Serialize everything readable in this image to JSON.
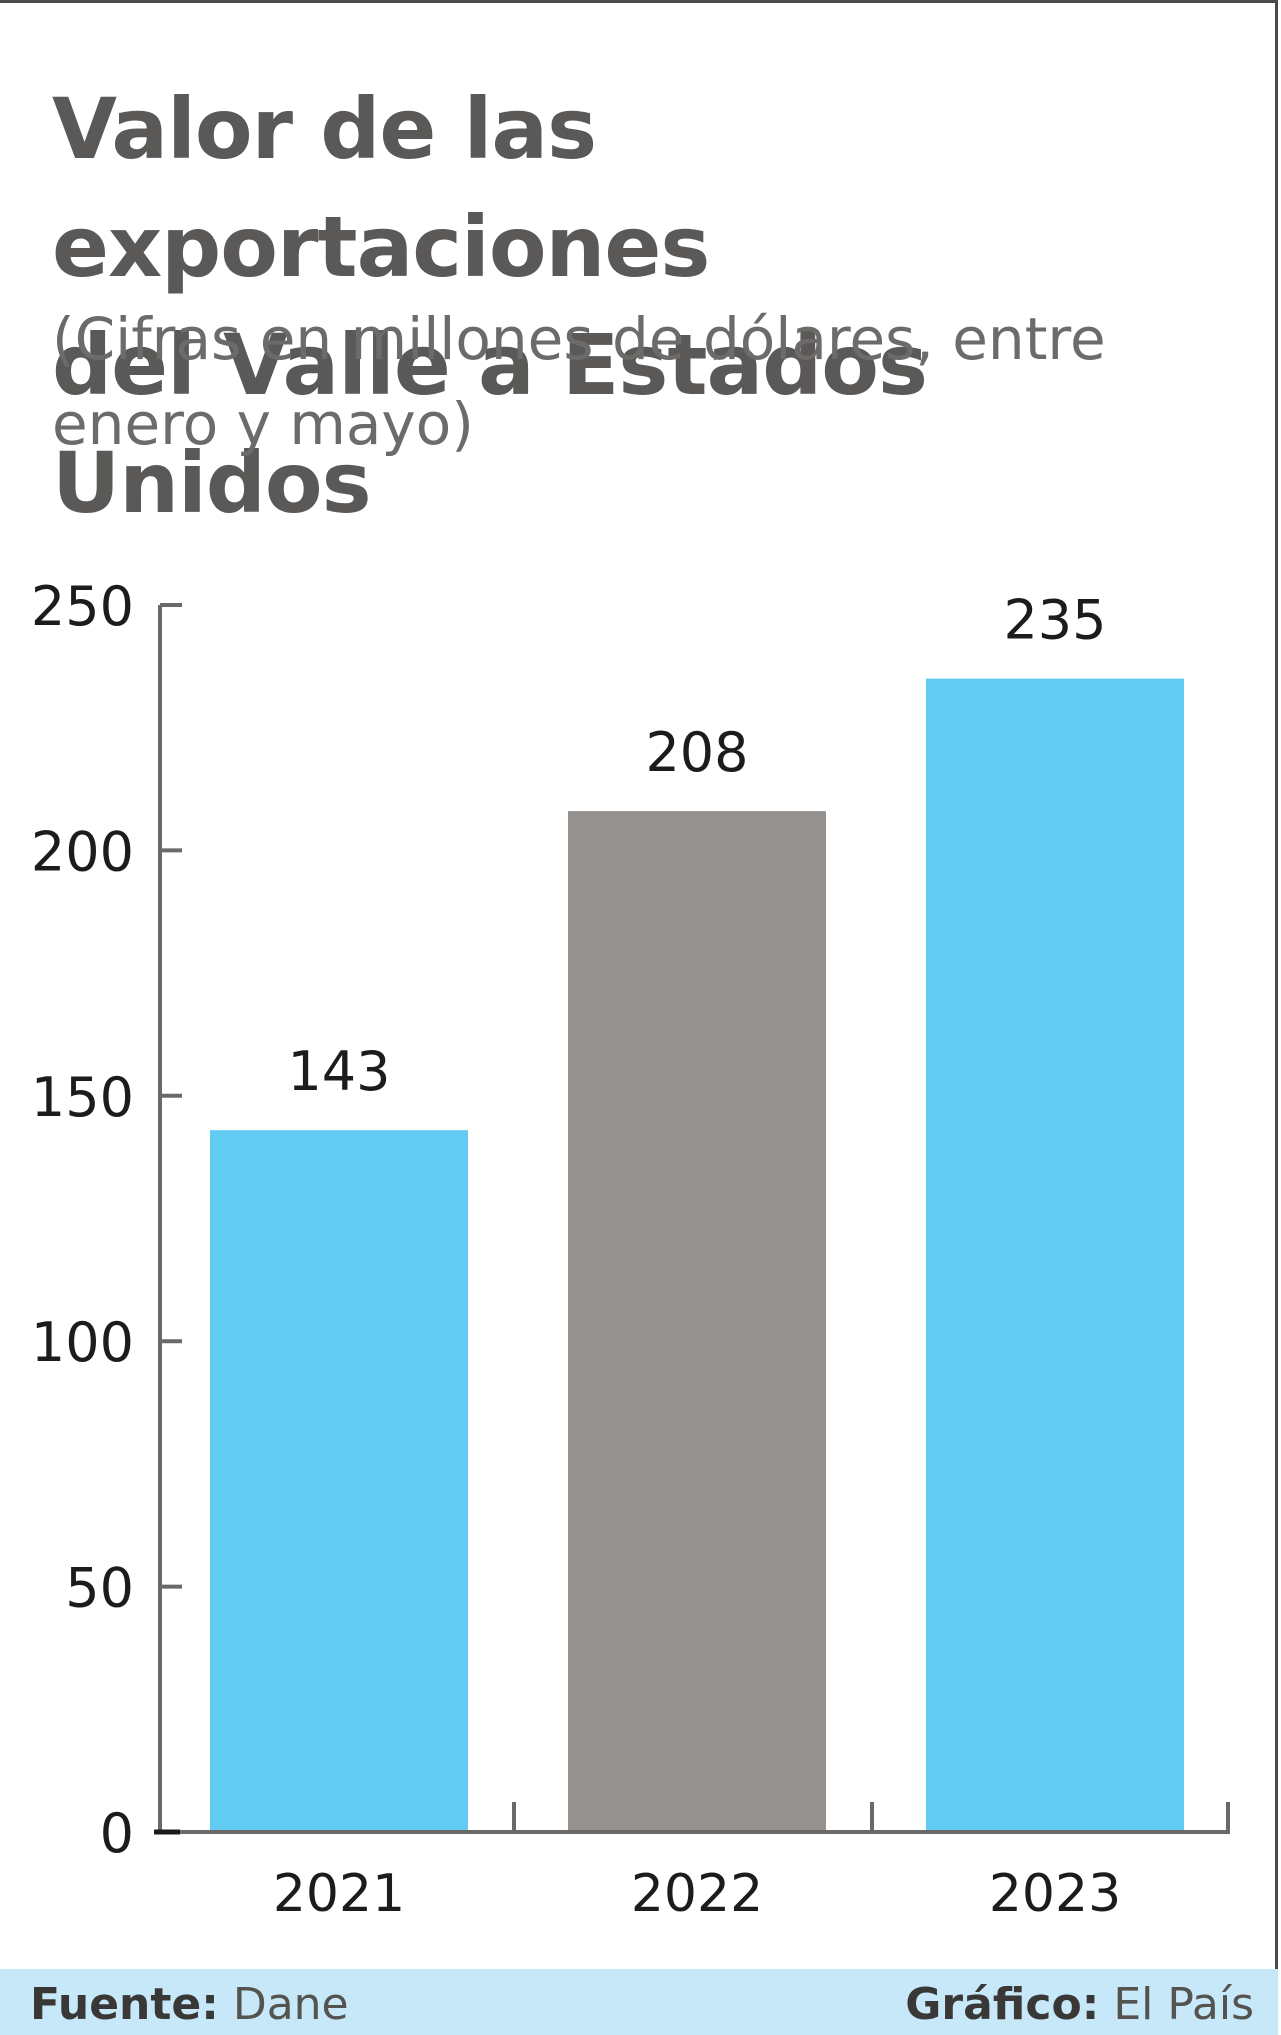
{
  "title_line1": "Valor de las exportaciones",
  "title_line2": "del Valle a Estados Unidos",
  "subtitle_line1": "(Cifras en millones de dólares, entre",
  "subtitle_line2": "enero y mayo)",
  "chart_data": {
    "type": "bar",
    "categories": [
      "2021",
      "2022",
      "2023"
    ],
    "values": [
      143,
      208,
      235
    ],
    "data_labels": [
      "143",
      "208",
      "235"
    ],
    "bar_colors": [
      "#62cbf2",
      "#94918e",
      "#62cbf2"
    ],
    "ylim": [
      0,
      250
    ],
    "yticks": [
      "0",
      "50",
      "100",
      "150",
      "200",
      "250"
    ],
    "grid": false
  },
  "footer": {
    "source_label": "Fuente:",
    "source_value": "Dane",
    "credit_label": "Gráfico:",
    "credit_value": "El País"
  },
  "colors": {
    "axis": "#6b6967",
    "text": "#1c1c1c",
    "footer_bg": "#c6e8f8"
  }
}
